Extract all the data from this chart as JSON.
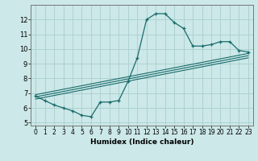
{
  "xlabel": "Humidex (Indice chaleur)",
  "ylabel": "",
  "xlim": [
    -0.5,
    23.5
  ],
  "ylim": [
    4.8,
    13.0
  ],
  "xticks": [
    0,
    1,
    2,
    3,
    4,
    5,
    6,
    7,
    8,
    9,
    10,
    11,
    12,
    13,
    14,
    15,
    16,
    17,
    18,
    19,
    20,
    21,
    22,
    23
  ],
  "yticks": [
    5,
    6,
    7,
    8,
    9,
    10,
    11,
    12
  ],
  "bg_color": "#cce8e8",
  "grid_color": "#aacece",
  "line_color": "#1a6b6b",
  "main_line": {
    "x": [
      0,
      1,
      2,
      3,
      4,
      5,
      6,
      7,
      8,
      9,
      10,
      11,
      12,
      13,
      14,
      15,
      16,
      17,
      18,
      19,
      20,
      21,
      22,
      23
    ],
    "y": [
      6.8,
      6.5,
      6.2,
      6.0,
      5.8,
      5.5,
      5.4,
      6.4,
      6.4,
      6.5,
      7.8,
      9.4,
      12.0,
      12.4,
      12.4,
      11.8,
      11.4,
      10.2,
      10.2,
      10.3,
      10.5,
      10.5,
      9.9,
      9.8
    ]
  },
  "diag_lines": [
    {
      "x": [
        0,
        23
      ],
      "y": [
        6.6,
        9.4
      ]
    },
    {
      "x": [
        0,
        23
      ],
      "y": [
        6.75,
        9.55
      ]
    },
    {
      "x": [
        0,
        23
      ],
      "y": [
        6.9,
        9.7
      ]
    }
  ]
}
